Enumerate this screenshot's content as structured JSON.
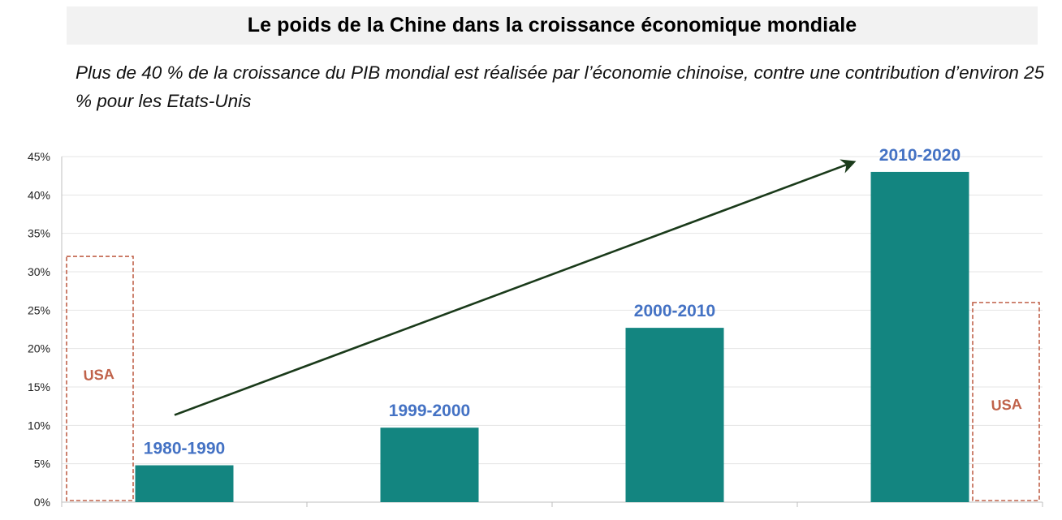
{
  "title": "Le poids de la Chine dans la croissance économique mondiale",
  "subtitle": "Plus de 40 % de la croissance du PIB mondial est réalisée par l’économie chinoise, contre une contribution d’environ 25 % pour les Etats-Unis",
  "chart_data": {
    "type": "bar",
    "categories": [
      "1980-1990",
      "1999-2000",
      "2000-2010",
      "2010-2020"
    ],
    "values": [
      4.8,
      9.7,
      22.7,
      43.0
    ],
    "ylim": [
      0,
      45
    ],
    "yticks": [
      "0%",
      "5%",
      "10%",
      "15%",
      "20%",
      "25%",
      "30%",
      "35%",
      "40%",
      "45%"
    ],
    "grid": true,
    "bar_color": "#138580",
    "label_color": "#4472c4",
    "annotations": {
      "usa_boxes": [
        {
          "label": "USA",
          "value": 32,
          "side": "left"
        },
        {
          "label": "USA",
          "value": 26,
          "side": "right"
        }
      ],
      "arrow": {
        "from_category": "1980-1990",
        "to_category": "2010-2020",
        "color": "#1a3a1a"
      }
    }
  }
}
